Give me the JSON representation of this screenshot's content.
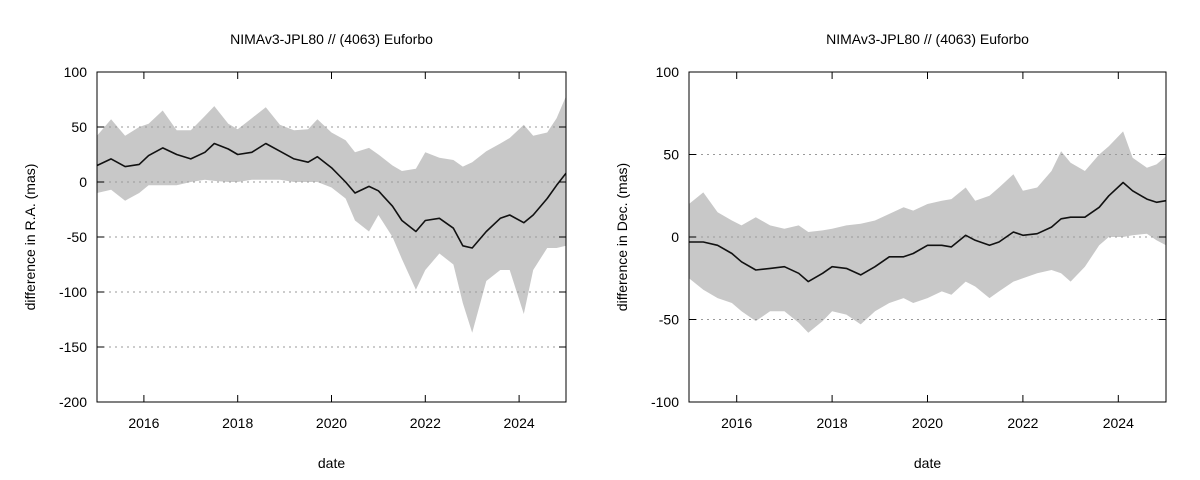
{
  "colors": {
    "band": "#c8c8c8",
    "line": "#111111",
    "grid": "#9a9a9a"
  },
  "chart_data": [
    {
      "type": "area",
      "title": "NIMAv3-JPL80 // (4063) Euforbo",
      "xlabel": "date",
      "ylabel": "difference in R.A. (mas)",
      "xlim": [
        2015.0,
        2025.0
      ],
      "ylim": [
        -200,
        100
      ],
      "xticks": [
        2016,
        2018,
        2020,
        2022,
        2024
      ],
      "yticks": [
        -200,
        -150,
        -100,
        -50,
        0,
        50,
        100
      ],
      "grid": "horizontal dotted",
      "series": [
        {
          "style": "line",
          "x": [
            2015.0,
            2015.3,
            2015.6,
            2015.9,
            2016.1,
            2016.4,
            2016.7,
            2017.0,
            2017.3,
            2017.5,
            2017.8,
            2018.0,
            2018.3,
            2018.6,
            2018.9,
            2019.2,
            2019.5,
            2019.7,
            2020.0,
            2020.3,
            2020.5,
            2020.8,
            2021.0,
            2021.3,
            2021.5,
            2021.8,
            2022.0,
            2022.3,
            2022.6,
            2022.8,
            2023.0,
            2023.3,
            2023.6,
            2023.8,
            2024.1,
            2024.3,
            2024.6,
            2024.8,
            2025.0
          ],
          "y": [
            15,
            21,
            14,
            16,
            24,
            31,
            25,
            21,
            27,
            35,
            30,
            25,
            27,
            35,
            28,
            21,
            18,
            23,
            13,
            0,
            -10,
            -4,
            -8,
            -22,
            -35,
            -45,
            -35,
            -33,
            -42,
            -58,
            -60,
            -45,
            -33,
            -30,
            -37,
            -30,
            -15,
            -3,
            8
          ]
        },
        {
          "style": "band",
          "x": [
            2015.0,
            2015.3,
            2015.6,
            2015.9,
            2016.1,
            2016.4,
            2016.7,
            2017.0,
            2017.3,
            2017.5,
            2017.8,
            2018.0,
            2018.3,
            2018.6,
            2018.9,
            2019.2,
            2019.5,
            2019.7,
            2020.0,
            2020.3,
            2020.5,
            2020.8,
            2021.0,
            2021.3,
            2021.5,
            2021.8,
            2022.0,
            2022.3,
            2022.6,
            2022.8,
            2023.0,
            2023.3,
            2023.6,
            2023.8,
            2024.1,
            2024.3,
            2024.6,
            2024.8,
            2025.0
          ],
          "upper": [
            42,
            57,
            42,
            50,
            53,
            65,
            47,
            47,
            60,
            69,
            53,
            48,
            58,
            68,
            52,
            47,
            48,
            57,
            45,
            38,
            27,
            31,
            25,
            15,
            10,
            12,
            27,
            22,
            20,
            14,
            18,
            28,
            35,
            40,
            52,
            42,
            45,
            58,
            78
          ],
          "lower": [
            -10,
            -7,
            -17,
            -10,
            -3,
            -3,
            -3,
            0,
            2,
            1,
            0,
            0,
            2,
            2,
            2,
            0,
            0,
            0,
            -5,
            -15,
            -35,
            -45,
            -30,
            -50,
            -70,
            -98,
            -80,
            -65,
            -75,
            -110,
            -137,
            -90,
            -80,
            -80,
            -120,
            -80,
            -60,
            -60,
            -58
          ]
        }
      ]
    },
    {
      "type": "area",
      "title": "NIMAv3-JPL80 // (4063) Euforbo",
      "xlabel": "date",
      "ylabel": "difference in Dec. (mas)",
      "xlim": [
        2015.0,
        2025.0
      ],
      "ylim": [
        -100,
        100
      ],
      "xticks": [
        2016,
        2018,
        2020,
        2022,
        2024
      ],
      "yticks": [
        -100,
        -50,
        0,
        50,
        100
      ],
      "grid": "horizontal dotted",
      "series": [
        {
          "style": "line",
          "x": [
            2015.0,
            2015.3,
            2015.6,
            2015.9,
            2016.1,
            2016.4,
            2016.7,
            2017.0,
            2017.3,
            2017.5,
            2017.8,
            2018.0,
            2018.3,
            2018.6,
            2018.9,
            2019.2,
            2019.5,
            2019.7,
            2020.0,
            2020.3,
            2020.5,
            2020.8,
            2021.0,
            2021.3,
            2021.5,
            2021.8,
            2022.0,
            2022.3,
            2022.6,
            2022.8,
            2023.0,
            2023.3,
            2023.6,
            2023.8,
            2024.1,
            2024.3,
            2024.6,
            2024.8,
            2025.0
          ],
          "y": [
            -3,
            -3,
            -5,
            -10,
            -15,
            -20,
            -19,
            -18,
            -22,
            -27,
            -22,
            -18,
            -19,
            -23,
            -18,
            -12,
            -12,
            -10,
            -5,
            -5,
            -6,
            1,
            -2,
            -5,
            -3,
            3,
            1,
            2,
            6,
            11,
            12,
            12,
            18,
            25,
            33,
            28,
            23,
            21,
            22
          ]
        },
        {
          "style": "band",
          "x": [
            2015.0,
            2015.3,
            2015.6,
            2015.9,
            2016.1,
            2016.4,
            2016.7,
            2017.0,
            2017.3,
            2017.5,
            2017.8,
            2018.0,
            2018.3,
            2018.6,
            2018.9,
            2019.2,
            2019.5,
            2019.7,
            2020.0,
            2020.3,
            2020.5,
            2020.8,
            2021.0,
            2021.3,
            2021.5,
            2021.8,
            2022.0,
            2022.3,
            2022.6,
            2022.8,
            2023.0,
            2023.3,
            2023.6,
            2023.8,
            2024.1,
            2024.3,
            2024.6,
            2024.8,
            2025.0
          ],
          "upper": [
            20,
            27,
            15,
            10,
            7,
            12,
            7,
            5,
            7,
            3,
            4,
            5,
            7,
            8,
            10,
            14,
            18,
            16,
            20,
            22,
            23,
            30,
            22,
            25,
            30,
            38,
            28,
            30,
            40,
            52,
            45,
            40,
            50,
            55,
            64,
            48,
            42,
            44,
            49
          ],
          "lower": [
            -25,
            -32,
            -37,
            -40,
            -45,
            -51,
            -45,
            -45,
            -52,
            -58,
            -51,
            -45,
            -47,
            -53,
            -45,
            -40,
            -37,
            -40,
            -37,
            -33,
            -35,
            -27,
            -30,
            -37,
            -33,
            -27,
            -25,
            -22,
            -20,
            -22,
            -27,
            -18,
            -5,
            0,
            0,
            1,
            2,
            -2,
            -5
          ]
        }
      ]
    }
  ]
}
